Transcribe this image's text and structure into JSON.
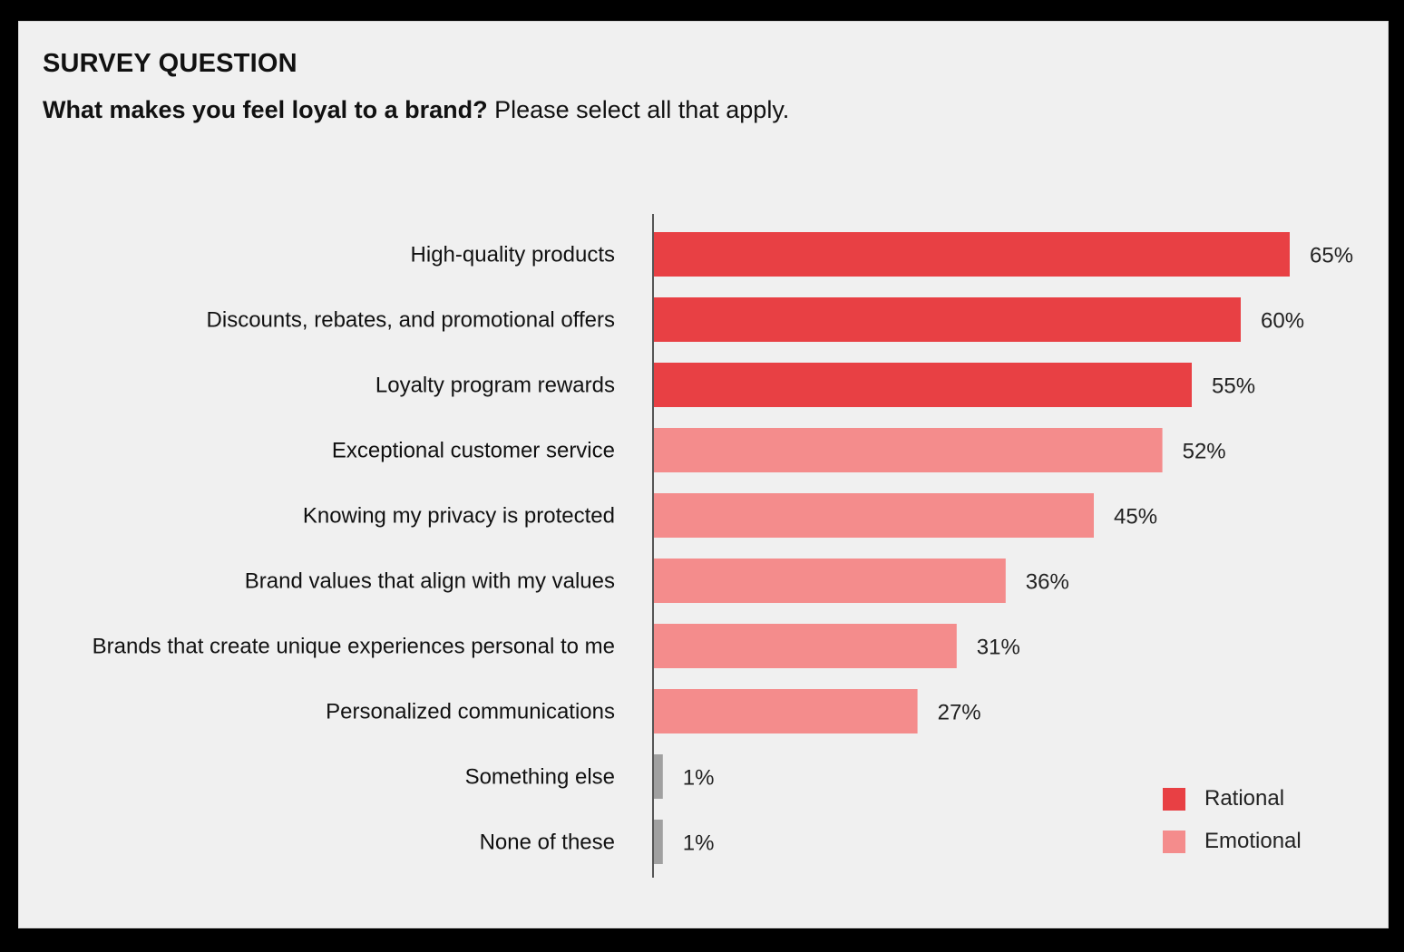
{
  "header": {
    "title": "SURVEY QUESTION",
    "question_bold": "What makes you feel loyal to a brand?",
    "question_rest": " Please select all that apply."
  },
  "colors": {
    "rational": "#e84044",
    "emotional": "#f48c8c",
    "other": "#a0a0a0",
    "axis": "#555555"
  },
  "legend": [
    {
      "label": "Rational",
      "group": "rational"
    },
    {
      "label": "Emotional",
      "group": "emotional"
    }
  ],
  "chart_data": {
    "type": "bar",
    "orientation": "horizontal",
    "title": "What makes you feel loyal to a brand?",
    "xlabel": "",
    "ylabel": "",
    "xlim": [
      0,
      70
    ],
    "unit": "%",
    "legend_position": "bottom-right",
    "categories": [
      "High-quality products",
      "Discounts, rebates, and promotional offers",
      "Loyalty program rewards",
      "Exceptional customer service",
      "Knowing my privacy is protected",
      "Brand values that align with my values",
      "Brands that create unique experiences personal to me",
      "Personalized communications",
      "Something else",
      "None of these"
    ],
    "values": [
      65,
      60,
      55,
      52,
      45,
      36,
      31,
      27,
      1,
      1
    ],
    "value_labels": [
      "65%",
      "60%",
      "55%",
      "52%",
      "45%",
      "36%",
      "31%",
      "27%",
      "1%",
      "1%"
    ],
    "groups": [
      "rational",
      "rational",
      "rational",
      "emotional",
      "emotional",
      "emotional",
      "emotional",
      "emotional",
      "other",
      "other"
    ]
  }
}
